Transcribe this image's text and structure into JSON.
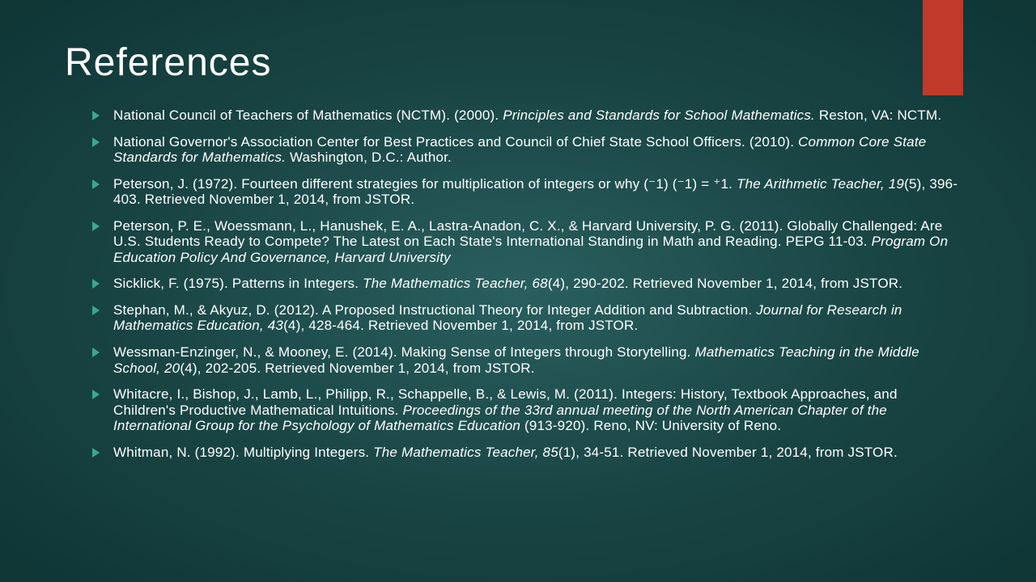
{
  "title": "References",
  "colors": {
    "accent_bar": "#c0392b",
    "bullet": "#3aa88f",
    "text": "#ffffff",
    "bg_center": "#2a5f5f",
    "bg_edge": "#0f3535"
  },
  "typography": {
    "title_fontsize": 48,
    "body_fontsize": 17,
    "font_family": "Century Gothic"
  },
  "references": [
    {
      "pre": "National Council of Teachers of Mathematics (NCTM). (2000). ",
      "italic": "Principles and Standards for School Mathematics.",
      "post": " Reston, VA: NCTM."
    },
    {
      "pre": "National Governor's Association Center for Best Practices and Council of Chief State School Officers. (2010). ",
      "italic": "Common Core State Standards for Mathematics.",
      "post": " Washington, D.C.: Author."
    },
    {
      "pre": "Peterson, J. (1972). Fourteen different strategies for multiplication of integers or why (⁻1) (⁻1) = ⁺1. ",
      "italic": "The Arithmetic Teacher, 19",
      "post": "(5), 396-403. Retrieved November 1, 2014, from JSTOR."
    },
    {
      "pre": "Peterson, P. E., Woessmann, L., Hanushek, E. A., Lastra-Anadon, C. X., & Harvard University, P. G. (2011). Globally Challenged: Are U.S. Students Ready to Compete? The Latest on Each State's International Standing in Math and Reading. PEPG 11-03. ",
      "italic": "Program On Education Policy And Governance, Harvard University",
      "post": ""
    },
    {
      "pre": "Sicklick, F. (1975). Patterns in Integers. ",
      "italic": "The Mathematics Teacher, 68",
      "post": "(4), 290-202. Retrieved November 1, 2014, from JSTOR."
    },
    {
      "pre": "Stephan, M., & Akyuz, D. (2012). A Proposed Instructional Theory for Integer Addition and Subtraction. ",
      "italic": "Journal for Research in Mathematics Education, 43",
      "post": "(4), 428-464. Retrieved November 1, 2014, from JSTOR."
    },
    {
      "pre": "Wessman-Enzinger, N., & Mooney, E. (2014). Making Sense of Integers through Storytelling. ",
      "italic": "Mathematics Teaching in the Middle School, 20",
      "post": "(4), 202-205. Retrieved November 1, 2014, from JSTOR."
    },
    {
      "pre": "Whitacre, I., Bishop, J., Lamb, L., Philipp, R., Schappelle, B., & Lewis, M. (2011). Integers: History, Textbook Approaches, and Children's Productive Mathematical Intuitions. ",
      "italic": "Proceedings of the 33rd annual meeting of the North American Chapter of the International Group for the Psychology of Mathematics Education",
      "post": " (913-920). Reno, NV: University of Reno."
    },
    {
      "pre": "Whitman, N. (1992). Multiplying Integers. ",
      "italic": "The Mathematics Teacher, 85",
      "post": "(1), 34-51. Retrieved November 1, 2014, from JSTOR."
    }
  ]
}
